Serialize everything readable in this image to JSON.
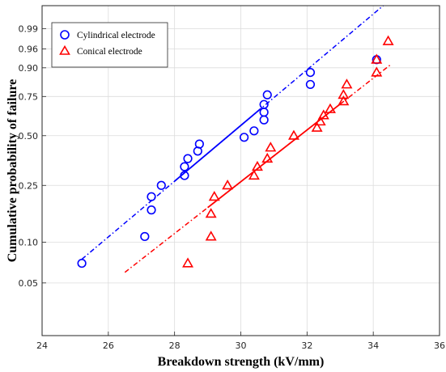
{
  "chart_data": {
    "type": "scatter",
    "title": "",
    "xlabel": "Breakdown strength (kV/mm)",
    "ylabel": "Cumulative probability of failure",
    "xlim": [
      24,
      36
    ],
    "x_scale": "linear",
    "y_scale": "weibull-probability",
    "ylim": [
      0.02,
      0.999
    ],
    "x_ticks": [
      24,
      26,
      28,
      30,
      32,
      34,
      36
    ],
    "x_tick_labels": [
      "24",
      "26",
      "28",
      "30",
      "32",
      "34",
      "36"
    ],
    "y_ticks": [
      0.05,
      0.1,
      0.25,
      0.5,
      0.75,
      0.9,
      0.96,
      0.99
    ],
    "y_tick_labels": [
      "0.05",
      "0.10",
      "0.25",
      "0.50",
      "0.75",
      "0.90",
      "0.96",
      "0.99"
    ],
    "grid": true,
    "legend_position": "top-left",
    "series": [
      {
        "name": "Cylindrical electrode",
        "marker": "circle",
        "color": "#0000ff",
        "fit_style": "solid-dashdot",
        "fit_x": [
          25.2,
          34.3
        ],
        "fit_y": [
          0.075,
          0.999
        ],
        "fit_solid_x": [
          28.0,
          30.6
        ],
        "points": [
          {
            "x": 25.2,
            "y": 0.07
          },
          {
            "x": 27.1,
            "y": 0.11
          },
          {
            "x": 27.3,
            "y": 0.17
          },
          {
            "x": 27.3,
            "y": 0.21
          },
          {
            "x": 27.6,
            "y": 0.25
          },
          {
            "x": 28.3,
            "y": 0.29
          },
          {
            "x": 28.3,
            "y": 0.33
          },
          {
            "x": 28.4,
            "y": 0.37
          },
          {
            "x": 28.7,
            "y": 0.41
          },
          {
            "x": 28.75,
            "y": 0.45
          },
          {
            "x": 30.1,
            "y": 0.49
          },
          {
            "x": 30.4,
            "y": 0.53
          },
          {
            "x": 30.7,
            "y": 0.6
          },
          {
            "x": 30.7,
            "y": 0.65
          },
          {
            "x": 30.7,
            "y": 0.7
          },
          {
            "x": 30.8,
            "y": 0.76
          },
          {
            "x": 32.1,
            "y": 0.82
          },
          {
            "x": 32.1,
            "y": 0.88
          },
          {
            "x": 34.1,
            "y": 0.93
          }
        ]
      },
      {
        "name": "Conical electrode",
        "marker": "triangle",
        "color": "#ff0000",
        "fit_style": "solid-dashdot",
        "fit_x": [
          26.5,
          34.5
        ],
        "fit_y": [
          0.06,
          0.91
        ],
        "fit_solid_x": [
          29.0,
          33.0
        ],
        "points": [
          {
            "x": 28.4,
            "y": 0.07
          },
          {
            "x": 29.1,
            "y": 0.11
          },
          {
            "x": 29.1,
            "y": 0.16
          },
          {
            "x": 29.2,
            "y": 0.21
          },
          {
            "x": 29.6,
            "y": 0.25
          },
          {
            "x": 30.4,
            "y": 0.29
          },
          {
            "x": 30.5,
            "y": 0.33
          },
          {
            "x": 30.8,
            "y": 0.37
          },
          {
            "x": 30.9,
            "y": 0.43
          },
          {
            "x": 31.6,
            "y": 0.5
          },
          {
            "x": 32.3,
            "y": 0.55
          },
          {
            "x": 32.4,
            "y": 0.59
          },
          {
            "x": 32.5,
            "y": 0.63
          },
          {
            "x": 32.7,
            "y": 0.67
          },
          {
            "x": 33.1,
            "y": 0.72
          },
          {
            "x": 33.1,
            "y": 0.76
          },
          {
            "x": 33.2,
            "y": 0.82
          },
          {
            "x": 34.1,
            "y": 0.88
          },
          {
            "x": 34.1,
            "y": 0.93
          },
          {
            "x": 34.45,
            "y": 0.975
          }
        ]
      }
    ]
  }
}
